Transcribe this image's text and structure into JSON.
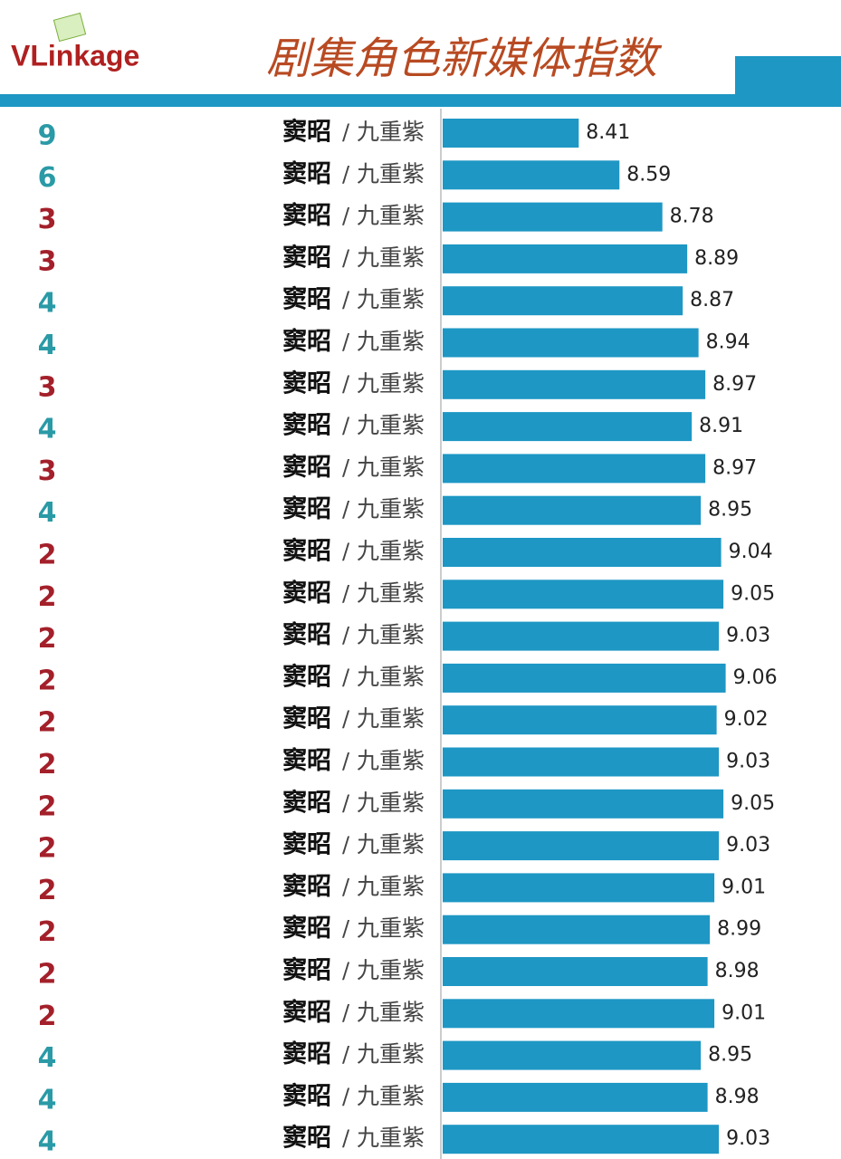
{
  "chart_data": {
    "type": "bar",
    "brand": "VLinkage",
    "title": "剧集角色新媒体指数",
    "separator": "/",
    "ranks": [
      9,
      6,
      3,
      3,
      4,
      4,
      3,
      4,
      3,
      4,
      2,
      2,
      2,
      2,
      2,
      2,
      2,
      2,
      2,
      2,
      2,
      2,
      4,
      4,
      4
    ],
    "categories": [
      "窦昭",
      "窦昭",
      "窦昭",
      "窦昭",
      "窦昭",
      "窦昭",
      "窦昭",
      "窦昭",
      "窦昭",
      "窦昭",
      "窦昭",
      "窦昭",
      "窦昭",
      "窦昭",
      "窦昭",
      "窦昭",
      "窦昭",
      "窦昭",
      "窦昭",
      "窦昭",
      "窦昭",
      "窦昭",
      "窦昭",
      "窦昭",
      "窦昭"
    ],
    "dramas": [
      "九重紫",
      "九重紫",
      "九重紫",
      "九重紫",
      "九重紫",
      "九重紫",
      "九重紫",
      "九重紫",
      "九重紫",
      "九重紫",
      "九重紫",
      "九重紫",
      "九重紫",
      "九重紫",
      "九重紫",
      "九重紫",
      "九重紫",
      "九重紫",
      "九重紫",
      "九重紫",
      "九重紫",
      "九重紫",
      "九重紫",
      "九重紫",
      "九重紫"
    ],
    "values": [
      8.41,
      8.59,
      8.78,
      8.89,
      8.87,
      8.94,
      8.97,
      8.91,
      8.97,
      8.95,
      9.04,
      9.05,
      9.03,
      9.06,
      9.02,
      9.03,
      9.05,
      9.03,
      9.01,
      8.99,
      8.98,
      9.01,
      8.95,
      8.98,
      9.03
    ],
    "color": "#1e97c4",
    "xlim": [
      7.8,
      9.35
    ]
  }
}
